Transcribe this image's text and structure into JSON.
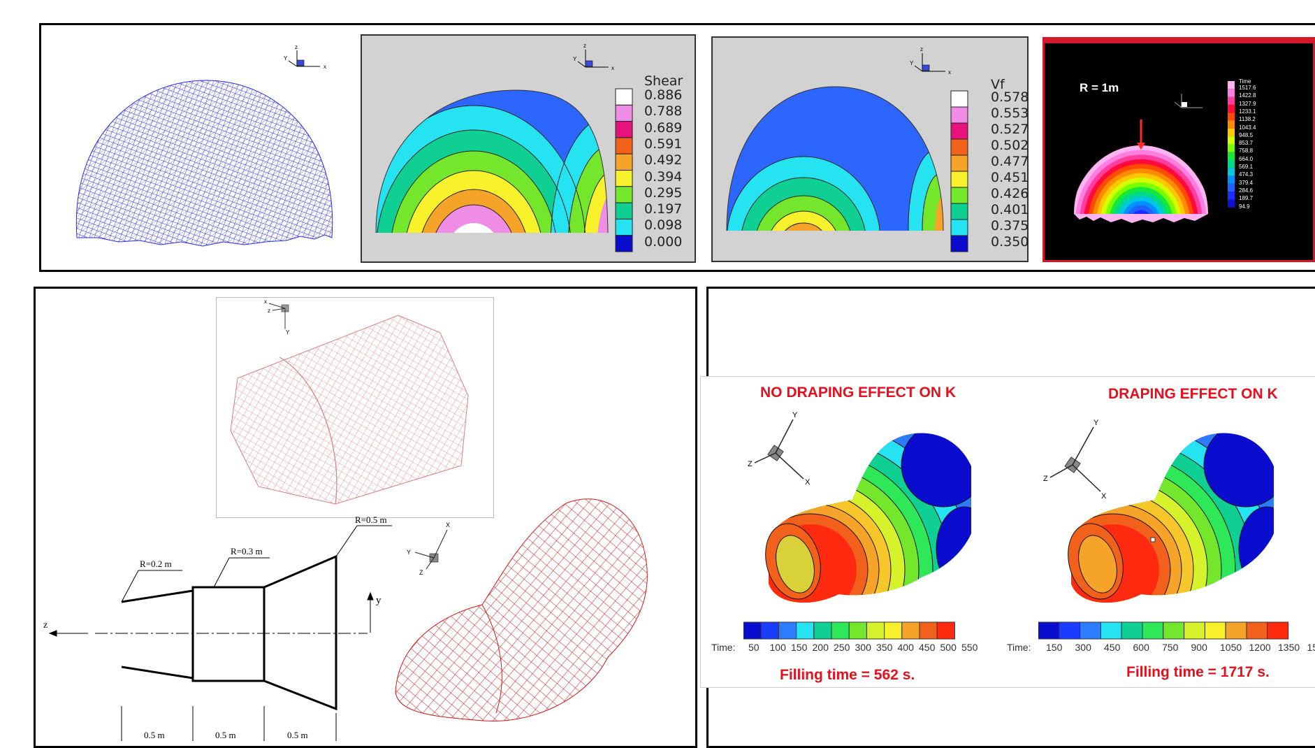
{
  "top_row": {
    "shear_panel": {
      "legend_title": "Shear",
      "legend_values": [
        "0.886",
        "0.788",
        "0.689",
        "0.591",
        "0.492",
        "0.394",
        "0.295",
        "0.197",
        "0.098",
        "0.000"
      ],
      "colors": [
        "#ffffff",
        "#ef8ce6",
        "#e8137a",
        "#f2611c",
        "#f6a32a",
        "#f7f12b",
        "#74e62b",
        "#0fcf93",
        "#25e3f1",
        "#0a0dcd"
      ]
    },
    "vf_panel": {
      "legend_title": "Vf",
      "legend_values": [
        "0.578",
        "0.553",
        "0.527",
        "0.502",
        "0.477",
        "0.451",
        "0.426",
        "0.401",
        "0.375",
        "0.350"
      ],
      "colors": [
        "#ffffff",
        "#ef8ce6",
        "#e8137a",
        "#f2611c",
        "#f6a32a",
        "#f7f12b",
        "#74e62b",
        "#0fcf93",
        "#25e3f1",
        "#0a0dcd"
      ]
    },
    "time_panel": {
      "radius_label": "R = 1m",
      "legend_title": "Time",
      "legend_values": [
        "1517.6",
        "1422.8",
        "1327.9",
        "1233.1",
        "1138.2",
        "1043.4",
        "948.5",
        "853.7",
        "758.8",
        "664.0",
        "569.1",
        "474.3",
        "379.4",
        "284.6",
        "189.7",
        "94.9"
      ]
    },
    "axes": {
      "z": "z",
      "y": "Y",
      "x": "x"
    }
  },
  "bottom_left": {
    "radius_labels": [
      "R=0.2 m",
      "R=0.3 m",
      "R=0.5 m"
    ],
    "length_labels": [
      "0.5 m",
      "0.5 m",
      "0.5 m"
    ],
    "axis_z": "z",
    "axis_y": "y",
    "mesh_axes": {
      "x": "x",
      "z": "z",
      "y": "Y",
      "x2": "X",
      "y2": "Y",
      "z2": "Z"
    }
  },
  "bottom_right": {
    "left_title": "NO DRAPING EFFECT ON K",
    "right_title": "DRAPING EFFECT ON K",
    "left_time_label": "Time:",
    "right_time_label": "Time:",
    "left_scale": [
      "50",
      "100",
      "150",
      "200",
      "250",
      "300",
      "350",
      "400",
      "450",
      "500",
      "550"
    ],
    "right_scale": [
      "150",
      "300",
      "450",
      "600",
      "750",
      "900",
      "1050",
      "1200",
      "1350",
      "15"
    ],
    "left_filling": "Filling time = 562 s.",
    "right_filling": "Filling time = 1717 s.",
    "axes": {
      "y": "Y",
      "z": "Z",
      "x": "X"
    }
  }
}
